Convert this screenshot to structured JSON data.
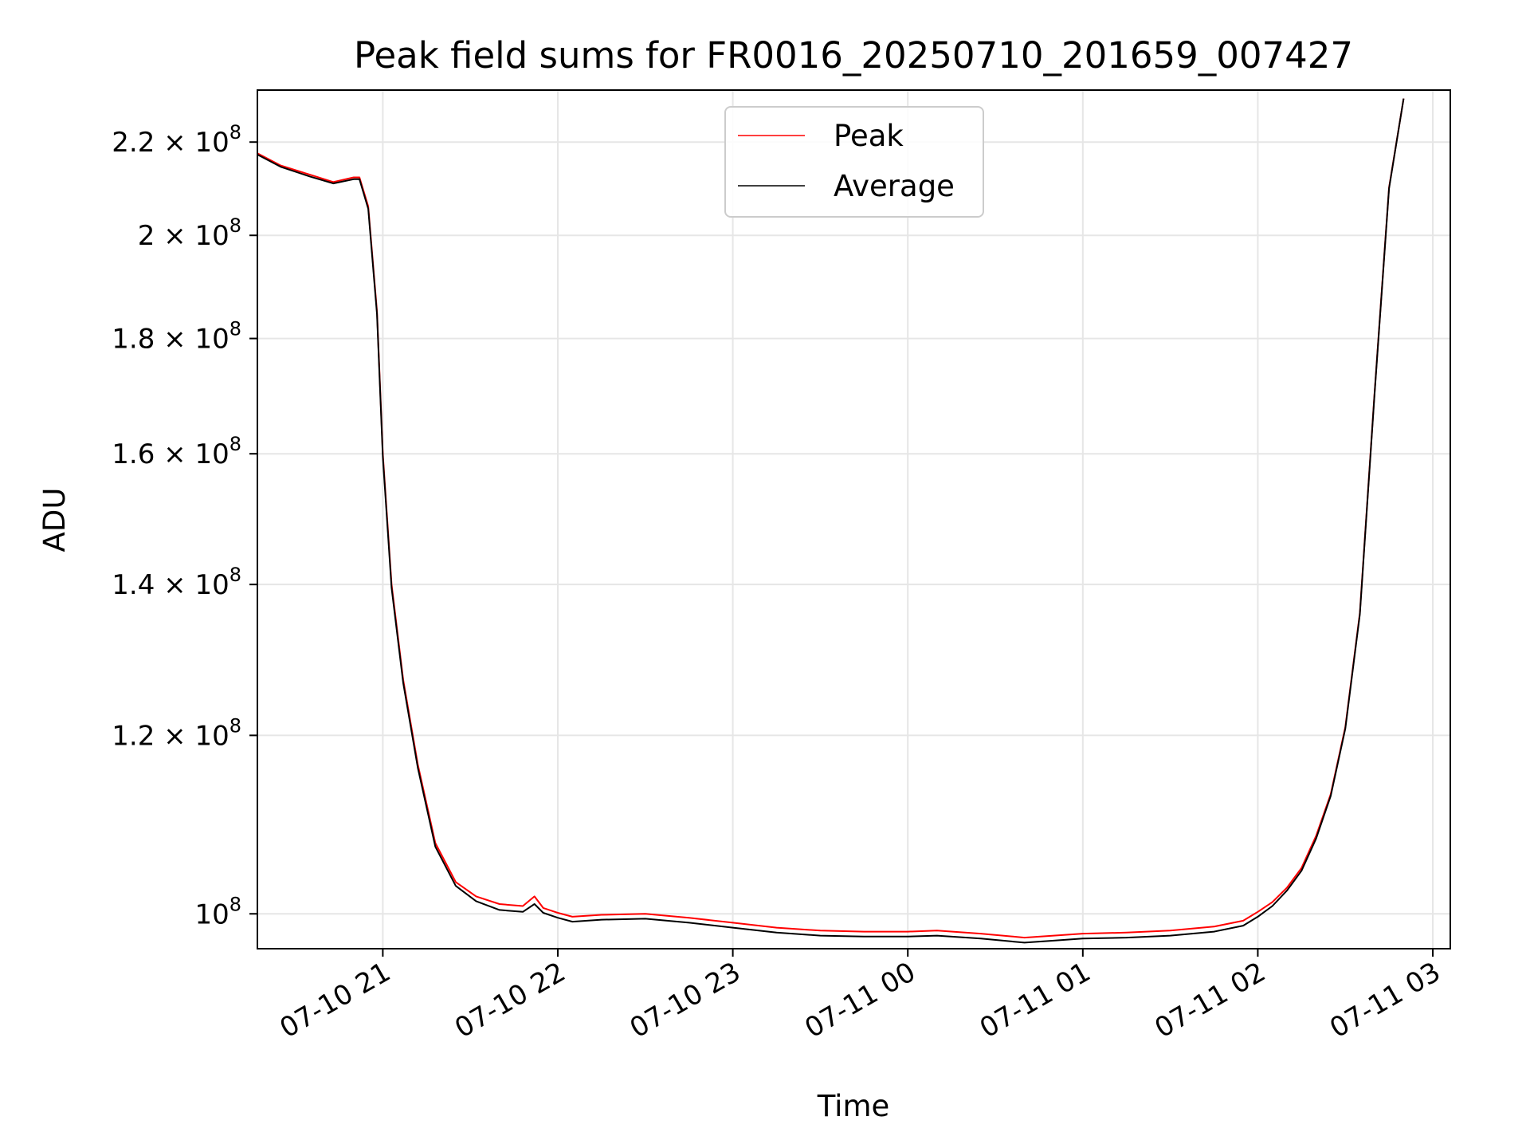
{
  "chart_data": {
    "type": "line",
    "title": "Peak field sums for FR0016_20250710_201659_007427",
    "xlabel": "Time",
    "ylabel": "ADU",
    "x_axis": {
      "kind": "datetime",
      "range": [
        "2025-07-10 20:17",
        "2025-07-11 03:06"
      ],
      "ticks": [
        {
          "value": "2025-07-10 21:00",
          "label": "07-10 21"
        },
        {
          "value": "2025-07-10 22:00",
          "label": "07-10 22"
        },
        {
          "value": "2025-07-10 23:00",
          "label": "07-10 23"
        },
        {
          "value": "2025-07-11 00:00",
          "label": "07-11 00"
        },
        {
          "value": "2025-07-11 01:00",
          "label": "07-11 01"
        },
        {
          "value": "2025-07-11 02:00",
          "label": "07-11 02"
        },
        {
          "value": "2025-07-11 03:00",
          "label": "07-11 03"
        }
      ]
    },
    "y_axis": {
      "scale": "log",
      "range": [
        96500000,
        232000000
      ],
      "ticks": [
        {
          "value": 100000000,
          "mantissa": "",
          "exponent": "8"
        },
        {
          "value": 120000000,
          "mantissa": "1.2",
          "exponent": "8"
        },
        {
          "value": 140000000,
          "mantissa": "1.4",
          "exponent": "8"
        },
        {
          "value": 160000000,
          "mantissa": "1.6",
          "exponent": "8"
        },
        {
          "value": 180000000,
          "mantissa": "1.8",
          "exponent": "8"
        },
        {
          "value": 200000000,
          "mantissa": "2",
          "exponent": "8"
        },
        {
          "value": 220000000,
          "mantissa": "2.2",
          "exponent": "8"
        }
      ]
    },
    "grid": true,
    "legend": {
      "position": "upper-center"
    },
    "series": [
      {
        "name": "Peak",
        "color": "#ff0000",
        "x": [
          "2025-07-10 20:17",
          "2025-07-10 20:25",
          "2025-07-10 20:35",
          "2025-07-10 20:43",
          "2025-07-10 20:50",
          "2025-07-10 20:52",
          "2025-07-10 20:55",
          "2025-07-10 20:58",
          "2025-07-10 21:00",
          "2025-07-10 21:03",
          "2025-07-10 21:07",
          "2025-07-10 21:12",
          "2025-07-10 21:18",
          "2025-07-10 21:25",
          "2025-07-10 21:32",
          "2025-07-10 21:40",
          "2025-07-10 21:48",
          "2025-07-10 21:52",
          "2025-07-10 21:55",
          "2025-07-10 22:00",
          "2025-07-10 22:05",
          "2025-07-10 22:15",
          "2025-07-10 22:30",
          "2025-07-10 22:45",
          "2025-07-10 23:00",
          "2025-07-10 23:15",
          "2025-07-10 23:30",
          "2025-07-10 23:45",
          "2025-07-11 00:00",
          "2025-07-11 00:10",
          "2025-07-11 00:25",
          "2025-07-11 00:40",
          "2025-07-11 00:50",
          "2025-07-11 01:00",
          "2025-07-11 01:15",
          "2025-07-11 01:30",
          "2025-07-11 01:45",
          "2025-07-11 01:55",
          "2025-07-11 02:00",
          "2025-07-11 02:05",
          "2025-07-11 02:10",
          "2025-07-11 02:15",
          "2025-07-11 02:20",
          "2025-07-11 02:25",
          "2025-07-11 02:30",
          "2025-07-11 02:35",
          "2025-07-11 02:40",
          "2025-07-11 02:45",
          "2025-07-11 02:50"
        ],
        "y": [
          217500000,
          214800000,
          212800000,
          211200000,
          212200000,
          212200000,
          206000000,
          185000000,
          160000000,
          140000000,
          127000000,
          116500000,
          107500000,
          103300000,
          101800000,
          101000000,
          100800000,
          101800000,
          100600000,
          100100000,
          99700000,
          99900000,
          100000000,
          99600000,
          99100000,
          98600000,
          98300000,
          98200000,
          98200000,
          98300000,
          98000000,
          97600000,
          97800000,
          98000000,
          98100000,
          98300000,
          98700000,
          99300000,
          100200000,
          101200000,
          102700000,
          104800000,
          108300000,
          113000000,
          121000000,
          136000000,
          170000000,
          210000000,
          230000000
        ]
      },
      {
        "name": "Average",
        "color": "#000000",
        "x": [
          "2025-07-10 20:17",
          "2025-07-10 20:25",
          "2025-07-10 20:35",
          "2025-07-10 20:43",
          "2025-07-10 20:50",
          "2025-07-10 20:52",
          "2025-07-10 20:55",
          "2025-07-10 20:58",
          "2025-07-10 21:00",
          "2025-07-10 21:03",
          "2025-07-10 21:07",
          "2025-07-10 21:12",
          "2025-07-10 21:18",
          "2025-07-10 21:25",
          "2025-07-10 21:32",
          "2025-07-10 21:40",
          "2025-07-10 21:48",
          "2025-07-10 21:52",
          "2025-07-10 21:55",
          "2025-07-10 22:00",
          "2025-07-10 22:05",
          "2025-07-10 22:15",
          "2025-07-10 22:30",
          "2025-07-10 22:45",
          "2025-07-10 23:00",
          "2025-07-10 23:15",
          "2025-07-10 23:30",
          "2025-07-10 23:45",
          "2025-07-11 00:00",
          "2025-07-11 00:10",
          "2025-07-11 00:25",
          "2025-07-11 00:40",
          "2025-07-11 00:50",
          "2025-07-11 01:00",
          "2025-07-11 01:15",
          "2025-07-11 01:30",
          "2025-07-11 01:45",
          "2025-07-11 01:55",
          "2025-07-11 02:00",
          "2025-07-11 02:05",
          "2025-07-11 02:10",
          "2025-07-11 02:15",
          "2025-07-11 02:20",
          "2025-07-11 02:25",
          "2025-07-11 02:30",
          "2025-07-11 02:35",
          "2025-07-11 02:40",
          "2025-07-11 02:45",
          "2025-07-11 02:50"
        ],
        "y": [
          217200000,
          214500000,
          212400000,
          210900000,
          211800000,
          211800000,
          205500000,
          184500000,
          159500000,
          139500000,
          126600000,
          116100000,
          107100000,
          102900000,
          101300000,
          100400000,
          100200000,
          101000000,
          100100000,
          99600000,
          99200000,
          99400000,
          99500000,
          99100000,
          98600000,
          98100000,
          97800000,
          97700000,
          97700000,
          97800000,
          97500000,
          97100000,
          97300000,
          97500000,
          97600000,
          97800000,
          98200000,
          98800000,
          99700000,
          100800000,
          102400000,
          104500000,
          108000000,
          112800000,
          120800000,
          135800000,
          169800000,
          209800000,
          230000000
        ]
      }
    ]
  }
}
